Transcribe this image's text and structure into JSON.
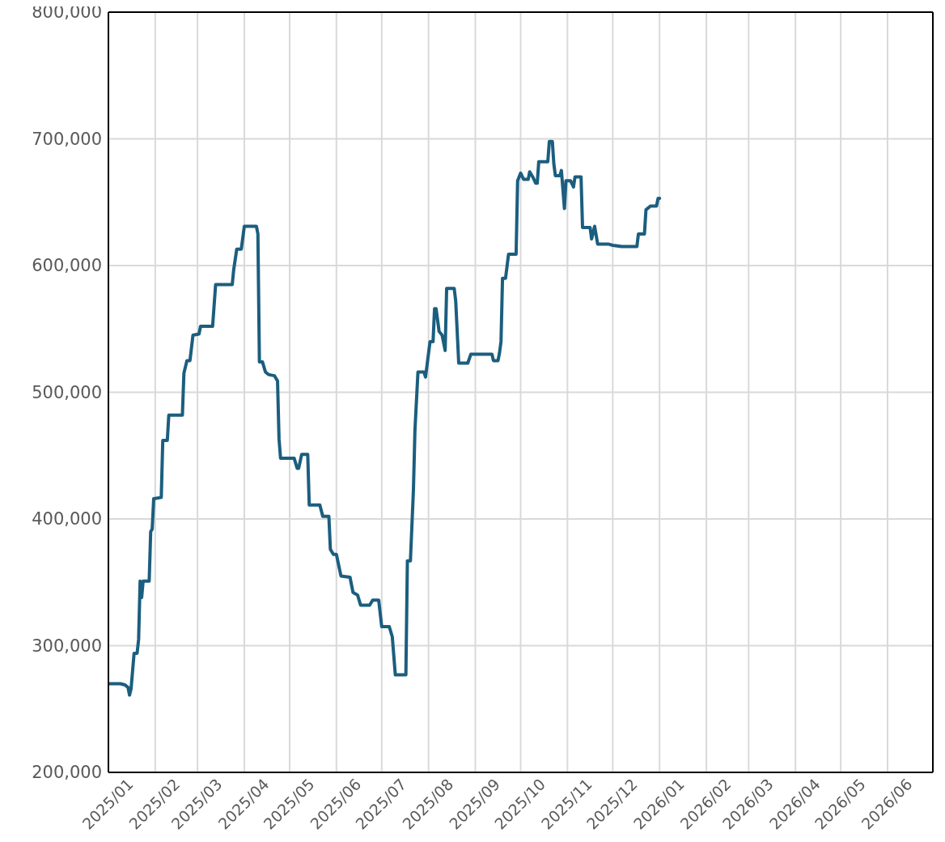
{
  "chart_data": {
    "type": "line",
    "x": [
      "2025-01-01",
      "2025-01-09",
      "2025-01-12",
      "2025-01-14",
      "2025-01-15",
      "2025-01-16",
      "2025-01-18",
      "2025-01-20",
      "2025-01-21",
      "2025-01-22",
      "2025-01-23",
      "2025-01-24",
      "2025-01-28",
      "2025-01-29",
      "2025-01-30",
      "2025-01-31",
      "2025-02-05",
      "2025-02-06",
      "2025-02-09",
      "2025-02-10",
      "2025-02-19",
      "2025-02-20",
      "2025-02-22",
      "2025-02-24",
      "2025-02-26",
      "2025-03-02",
      "2025-03-03",
      "2025-03-11",
      "2025-03-13",
      "2025-03-24",
      "2025-03-25",
      "2025-03-27",
      "2025-03-30",
      "2025-04-01",
      "2025-04-09",
      "2025-04-10",
      "2025-04-11",
      "2025-04-13",
      "2025-04-15",
      "2025-04-17",
      "2025-04-21",
      "2025-04-23",
      "2025-04-24",
      "2025-04-25",
      "2025-05-04",
      "2025-05-06",
      "2025-05-07",
      "2025-05-09",
      "2025-05-13",
      "2025-05-14",
      "2025-05-21",
      "2025-05-23",
      "2025-05-27",
      "2025-05-28",
      "2025-05-30",
      "2025-06-01",
      "2025-06-04",
      "2025-06-10",
      "2025-06-12",
      "2025-06-15",
      "2025-06-17",
      "2025-06-23",
      "2025-06-25",
      "2025-06-29",
      "2025-07-01",
      "2025-07-06",
      "2025-07-08",
      "2025-07-10",
      "2025-07-17",
      "2025-07-18",
      "2025-07-20",
      "2025-07-22",
      "2025-07-23",
      "2025-07-25",
      "2025-07-29",
      "2025-07-30",
      "2025-08-02",
      "2025-08-04",
      "2025-08-05",
      "2025-08-06",
      "2025-08-08",
      "2025-08-10",
      "2025-08-12",
      "2025-08-13",
      "2025-08-18",
      "2025-08-19",
      "2025-08-21",
      "2025-08-27",
      "2025-08-29",
      "2025-09-12",
      "2025-09-13",
      "2025-09-16",
      "2025-09-17",
      "2025-09-18",
      "2025-09-19",
      "2025-09-21",
      "2025-09-23",
      "2025-09-28",
      "2025-09-29",
      "2025-10-01",
      "2025-10-03",
      "2025-10-06",
      "2025-10-07",
      "2025-10-09",
      "2025-10-11",
      "2025-10-12",
      "2025-10-13",
      "2025-10-19",
      "2025-10-20",
      "2025-10-22",
      "2025-10-23",
      "2025-10-24",
      "2025-10-27",
      "2025-10-28",
      "2025-10-29",
      "2025-10-30",
      "2025-10-31",
      "2025-11-03",
      "2025-11-05",
      "2025-11-06",
      "2025-11-10",
      "2025-11-11",
      "2025-11-16",
      "2025-11-17",
      "2025-11-19",
      "2025-11-21",
      "2025-11-28",
      "2025-12-01",
      "2025-12-07",
      "2025-12-17",
      "2025-12-18",
      "2025-12-22",
      "2025-12-23",
      "2025-12-26",
      "2025-12-30",
      "2025-12-31",
      "2026-01-01"
    ],
    "series": [
      {
        "color": "#1b5e7f",
        "values": [
          270000,
          270000,
          269000,
          267000,
          261000,
          266000,
          294000,
          294000,
          305000,
          351000,
          338000,
          351000,
          351000,
          390000,
          392000,
          416000,
          417000,
          462000,
          462000,
          482000,
          482000,
          515000,
          525000,
          525000,
          545000,
          546000,
          552000,
          552000,
          585000,
          585000,
          597000,
          613000,
          613000,
          631000,
          631000,
          625000,
          524000,
          524000,
          516000,
          514000,
          513000,
          509000,
          463000,
          448000,
          448000,
          440000,
          440000,
          451000,
          451000,
          411000,
          411000,
          402000,
          402000,
          376000,
          372000,
          372000,
          355000,
          354000,
          342000,
          340000,
          332000,
          332000,
          336000,
          336000,
          315000,
          315000,
          307000,
          277000,
          277000,
          367000,
          367000,
          423000,
          470000,
          516000,
          516000,
          512000,
          540000,
          540000,
          566000,
          566000,
          548000,
          545000,
          533000,
          582000,
          582000,
          572000,
          523000,
          523000,
          530000,
          530000,
          525000,
          525000,
          531000,
          540000,
          590000,
          590000,
          609000,
          609000,
          667000,
          673000,
          668000,
          668000,
          674000,
          670000,
          665000,
          665000,
          682000,
          682000,
          698000,
          698000,
          680000,
          671000,
          671000,
          675000,
          660000,
          645000,
          667000,
          667000,
          662000,
          670000,
          670000,
          630000,
          630000,
          621000,
          631000,
          617000,
          617000,
          616000,
          615000,
          615000,
          625000,
          625000,
          644000,
          647000,
          647000,
          653000,
          653000
        ]
      }
    ],
    "xlim": [
      "2025-01-01",
      "2026-07-01"
    ],
    "xticks": [
      {
        "value": "2025-01-01",
        "label": "2025/01"
      },
      {
        "value": "2025-02-01",
        "label": "2025/02"
      },
      {
        "value": "2025-03-01",
        "label": "2025/03"
      },
      {
        "value": "2025-04-01",
        "label": "2025/04"
      },
      {
        "value": "2025-05-01",
        "label": "2025/05"
      },
      {
        "value": "2025-06-01",
        "label": "2025/06"
      },
      {
        "value": "2025-07-01",
        "label": "2025/07"
      },
      {
        "value": "2025-08-01",
        "label": "2025/08"
      },
      {
        "value": "2025-09-01",
        "label": "2025/09"
      },
      {
        "value": "2025-10-01",
        "label": "2025/10"
      },
      {
        "value": "2025-11-01",
        "label": "2025/11"
      },
      {
        "value": "2025-12-01",
        "label": "2025/12"
      },
      {
        "value": "2026-01-01",
        "label": "2026/01"
      },
      {
        "value": "2026-02-01",
        "label": "2026/02"
      },
      {
        "value": "2026-03-01",
        "label": "2026/03"
      },
      {
        "value": "2026-04-01",
        "label": "2026/04"
      },
      {
        "value": "2026-05-01",
        "label": "2026/05"
      },
      {
        "value": "2026-06-01",
        "label": "2026/06"
      }
    ],
    "ylim": [
      200000,
      800000
    ],
    "yticks": [
      {
        "value": 200000,
        "label": "200,000"
      },
      {
        "value": 300000,
        "label": "300,000"
      },
      {
        "value": 400000,
        "label": "400,000"
      },
      {
        "value": 500000,
        "label": "500,000"
      },
      {
        "value": 600000,
        "label": "600,000"
      },
      {
        "value": 700000,
        "label": "700,000"
      },
      {
        "value": 800000,
        "label": "800,000"
      }
    ],
    "grid": true,
    "marker": "none",
    "line_style": "solid",
    "legend": false
  }
}
